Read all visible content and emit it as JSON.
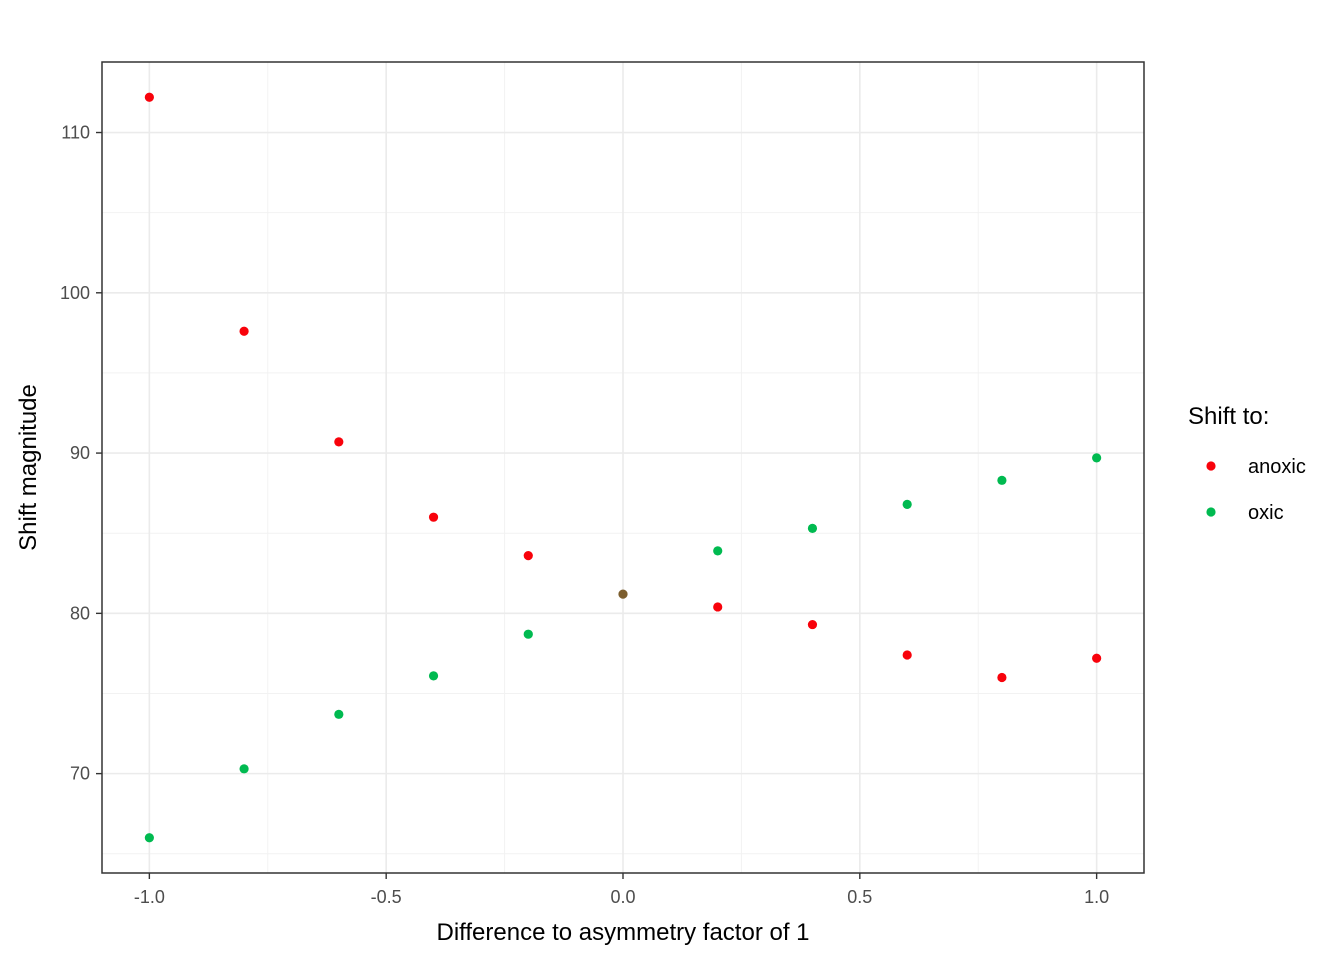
{
  "chart_data": {
    "type": "scatter",
    "title": "",
    "xlabel": "Difference to asymmetry factor of 1",
    "ylabel": "Shift magnitude",
    "xlim": [
      -1.1,
      1.1
    ],
    "ylim": [
      63.8,
      114.4
    ],
    "x_ticks": [
      -1.0,
      -0.5,
      0.0,
      0.5,
      1.0
    ],
    "x_tick_labels": [
      "-1.0",
      "-0.5",
      "0.0",
      "0.5",
      "1.0"
    ],
    "x_minor_ticks": [
      -0.75,
      -0.25,
      0.25,
      0.75
    ],
    "y_ticks": [
      70,
      80,
      90,
      100,
      110
    ],
    "y_tick_labels": [
      "70",
      "80",
      "90",
      "100",
      "110"
    ],
    "y_minor_ticks": [
      65,
      75,
      85,
      95,
      105
    ],
    "grid": true,
    "legend": {
      "title": "Shift to:",
      "position": "right",
      "entries": [
        {
          "label": "anoxic",
          "color": "#F8020B"
        },
        {
          "label": "oxic",
          "color": "#00BA50"
        }
      ]
    },
    "series": [
      {
        "name": "anoxic",
        "color": "#F8020B",
        "x": [
          -1.0,
          -0.8,
          -0.6,
          -0.4,
          -0.2,
          0.2,
          0.4,
          0.6,
          0.8,
          1.0
        ],
        "y": [
          112.2,
          97.6,
          90.7,
          86.0,
          83.6,
          80.4,
          79.3,
          77.4,
          76.0,
          77.2
        ]
      },
      {
        "name": "oxic",
        "color": "#00BA50",
        "x": [
          -1.0,
          -0.8,
          -0.6,
          -0.4,
          -0.2,
          0.2,
          0.4,
          0.6,
          0.8,
          1.0
        ],
        "y": [
          66.0,
          70.3,
          73.7,
          76.1,
          78.7,
          83.9,
          85.3,
          86.8,
          88.3,
          89.7
        ]
      }
    ],
    "overlap_points": [
      {
        "x": 0.0,
        "y": 81.2,
        "color": "#7C5E2E"
      }
    ]
  }
}
